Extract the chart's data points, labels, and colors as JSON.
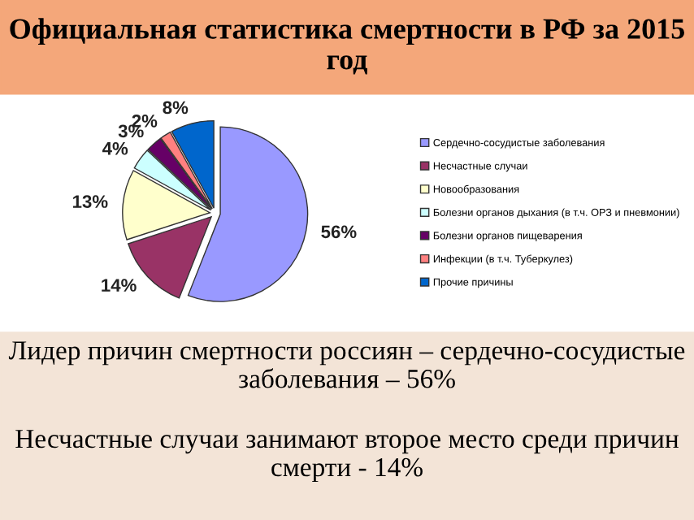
{
  "chart_data": {
    "type": "pie",
    "title": "Официальная статистика смертности в РФ за 2015 год",
    "categories": [
      "Сердечно-сосудистые заболевания",
      "Несчастные случаи",
      "Новообразования",
      "Болезни органов дыхания (в т.ч. ОРЗ и пневмонии)",
      "Болезни органов пищеварения",
      "Инфекции (в т.ч. Туберкулез)",
      "Прочие причины"
    ],
    "values": [
      56,
      14,
      13,
      4,
      3,
      2,
      8
    ],
    "colors": [
      "#9999ff",
      "#993366",
      "#ffffcc",
      "#ccffff",
      "#660066",
      "#ff8080",
      "#0066cc"
    ],
    "value_labels": [
      "56%",
      "14%",
      "13%",
      "4%",
      "3%",
      "2%",
      "8%"
    ],
    "legend": "right",
    "annotations": [
      "Лидер причин смертности россиян – сердечно-сосудистые заболевания – 56%",
      "Несчастные случаи занимают второе место среди причин смерти - 14%"
    ]
  }
}
